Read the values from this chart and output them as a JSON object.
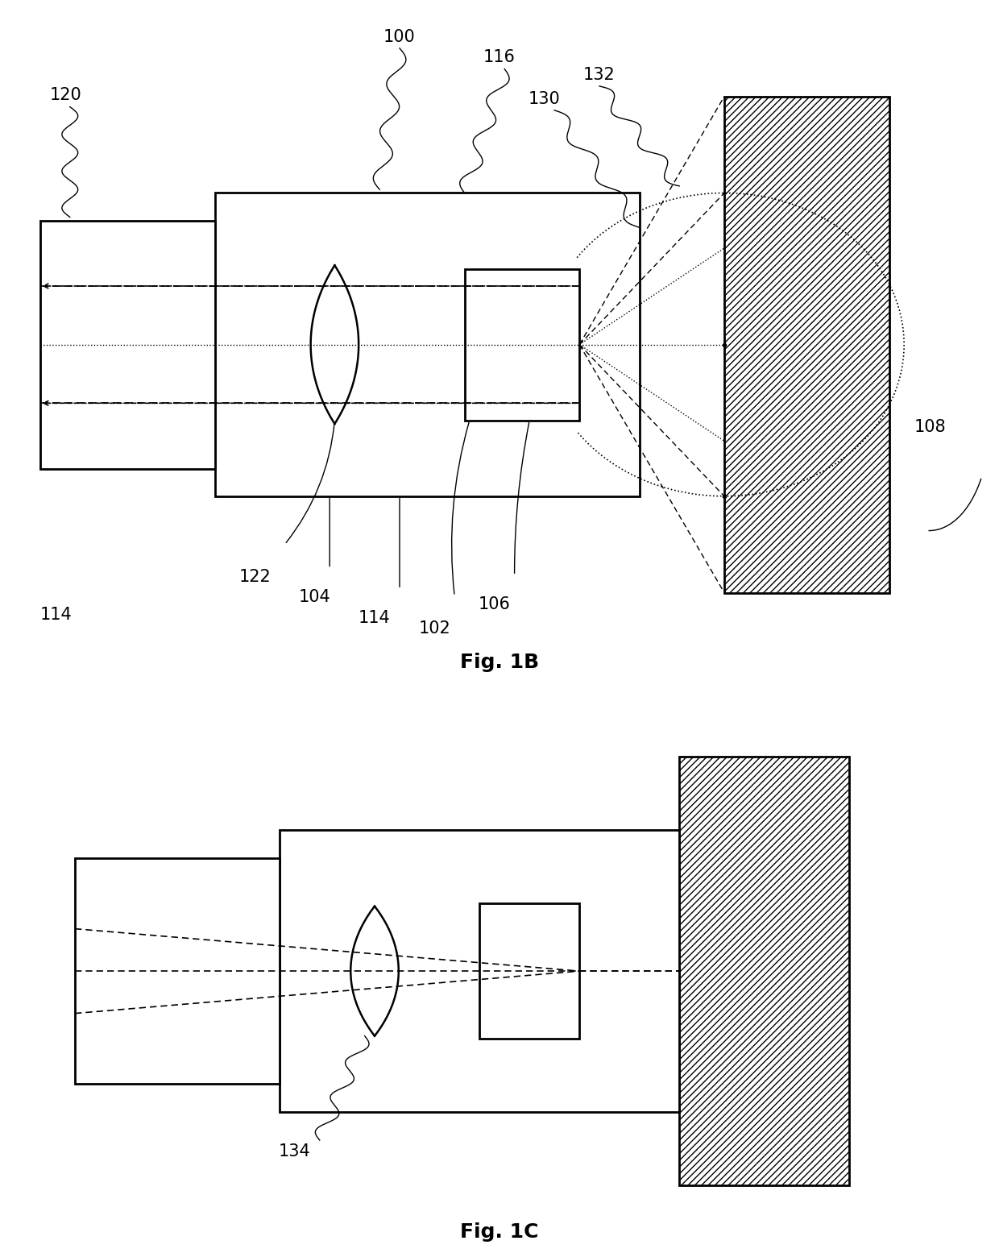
{
  "bg_color": "#ffffff",
  "fig1b_title": "Fig. 1B",
  "fig1c_title": "Fig. 1C",
  "fontsize_label": 15,
  "fontsize_title": 18
}
